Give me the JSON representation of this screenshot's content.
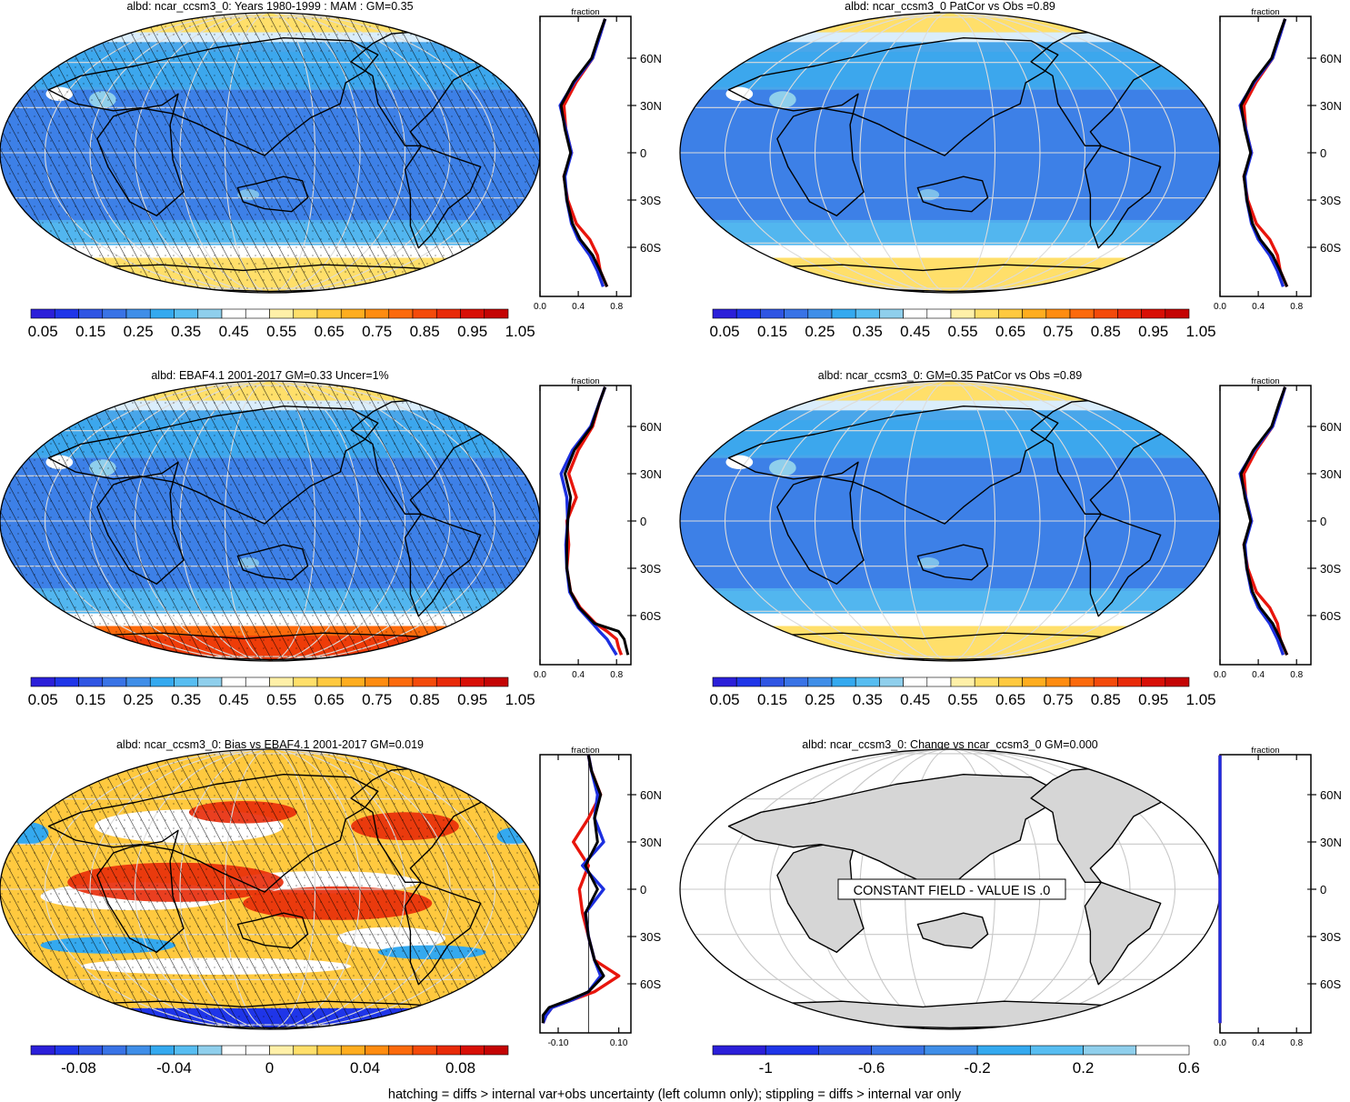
{
  "palettes": {
    "albedo": [
      "#2b1fd9",
      "#1f35e8",
      "#2f55e3",
      "#3973e6",
      "#3f8ee8",
      "#34a9ef",
      "#57bdf1",
      "#8fcfec",
      "#ffffff",
      "#ffffff",
      "#fff0a8",
      "#ffdf6a",
      "#ffc93f",
      "#ffad1f",
      "#ff8c10",
      "#fc6a0c",
      "#f44a0a",
      "#e82a08",
      "#d80f06",
      "#c40404"
    ],
    "bias": [
      "#2b1fd9",
      "#1f35e8",
      "#2f55e3",
      "#3973e6",
      "#3f8ee8",
      "#34a9ef",
      "#57bdf1",
      "#8fcfec",
      "#ffffff",
      "#ffffff",
      "#fff0a8",
      "#ffdf6a",
      "#ffc93f",
      "#ffad1f",
      "#ff8c10",
      "#fc6a0c",
      "#f44a0a",
      "#e82a08",
      "#d80f06",
      "#c40404"
    ],
    "change": [
      "#2b1fd9",
      "#1f35e8",
      "#2f55e3",
      "#3973e6",
      "#3f8ee8",
      "#34a9ef",
      "#57bdf1",
      "#8fcfec",
      "#ffffff"
    ]
  },
  "colors": {
    "line_red": "#e8150c",
    "line_blue": "#1c2fe0",
    "line_black": "#000000",
    "land_grey": "#d6d6d6",
    "ocean_blue": "#49a6ea"
  },
  "panels": [
    {
      "id": "p1",
      "title": "albd: ncar_ccsm3_0: Years 1980-1999 : MAM : GM=0.35",
      "fill": "albedo",
      "hatching": true,
      "colorbar_labels": [
        "0.05",
        "0.15",
        "0.25",
        "0.35",
        "0.45",
        "0.55",
        "0.65",
        "0.75",
        "0.85",
        "0.95",
        "1.05"
      ],
      "profile": {
        "axis_title": "fraction",
        "x_ticks": [
          "0.0",
          "0.4",
          "0.8"
        ],
        "y_ticks": [
          "60N",
          "30N",
          "0",
          "30S",
          "60S"
        ],
        "xlim": [
          0,
          0.95
        ]
      }
    },
    {
      "id": "p2",
      "title": "albd: ncar_ccsm3_0 PatCor vs Obs =0.89",
      "fill": "albedo",
      "hatching": false,
      "colorbar_labels": [
        "0.05",
        "0.15",
        "0.25",
        "0.35",
        "0.45",
        "0.55",
        "0.65",
        "0.75",
        "0.85",
        "0.95",
        "1.05"
      ],
      "profile": {
        "axis_title": "fraction",
        "x_ticks": [
          "0.0",
          "0.4",
          "0.8"
        ],
        "y_ticks": [
          "60N",
          "30N",
          "0",
          "30S",
          "60S"
        ],
        "xlim": [
          0,
          0.95
        ]
      }
    },
    {
      "id": "p3",
      "title": "albd: EBAF4.1 2001-2017 GM=0.33 Uncer=1%",
      "fill": "albedo",
      "hatching": true,
      "colorbar_labels": [
        "0.05",
        "0.15",
        "0.25",
        "0.35",
        "0.45",
        "0.55",
        "0.65",
        "0.75",
        "0.85",
        "0.95",
        "1.05"
      ],
      "profile": {
        "axis_title": "fraction",
        "x_ticks": [
          "0.0",
          "0.4",
          "0.8"
        ],
        "y_ticks": [
          "60N",
          "30N",
          "0",
          "30S",
          "60S"
        ],
        "xlim": [
          0,
          0.95
        ]
      }
    },
    {
      "id": "p4",
      "title": "albd: ncar_ccsm3_0: GM=0.35 PatCor vs Obs =0.89",
      "fill": "albedo",
      "hatching": false,
      "colorbar_labels": [
        "0.05",
        "0.15",
        "0.25",
        "0.35",
        "0.45",
        "0.55",
        "0.65",
        "0.75",
        "0.85",
        "0.95",
        "1.05"
      ],
      "profile": {
        "axis_title": "fraction",
        "x_ticks": [
          "0.0",
          "0.4",
          "0.8"
        ],
        "y_ticks": [
          "60N",
          "30N",
          "0",
          "30S",
          "60S"
        ],
        "xlim": [
          0,
          0.95
        ]
      }
    },
    {
      "id": "p5",
      "title": "albd: ncar_ccsm3_0: Bias vs EBAF4.1 2001-2017 GM=0.019",
      "fill": "bias",
      "hatching": true,
      "colorbar_labels": [
        "-0.08",
        "-0.04",
        "0",
        "0.04",
        "0.08"
      ],
      "profile": {
        "axis_title": "fraction",
        "x_ticks": [
          "-0.10",
          "0.10"
        ],
        "y_ticks": [
          "60N",
          "30N",
          "0",
          "30S",
          "60S"
        ],
        "xlim": [
          -0.16,
          0.14
        ]
      }
    },
    {
      "id": "p6",
      "title": "albd: ncar_ccsm3_0: Change vs ncar_ccsm3_0 GM=0.000",
      "fill": "constant",
      "hatching": false,
      "constant_label": "CONSTANT FIELD - VALUE IS .0",
      "colorbar_labels": [
        "-1",
        "-0.6",
        "-0.2",
        "0.2",
        "0.6"
      ],
      "profile": {
        "axis_title": "fraction",
        "x_ticks": [
          "0.0",
          "0.4",
          "0.8"
        ],
        "y_ticks": [
          "60N",
          "30N",
          "0",
          "30S",
          "60S"
        ],
        "xlim": [
          0,
          0.95
        ]
      }
    }
  ],
  "chart_data": [
    {
      "type": "line",
      "panel": "p1",
      "y_name": "latitude",
      "lat": [
        85,
        75,
        60,
        45,
        30,
        15,
        0,
        -15,
        -30,
        -45,
        -55,
        -65,
        -75,
        -85
      ],
      "series": [
        {
          "values": [
            0.68,
            0.63,
            0.55,
            0.38,
            0.25,
            0.27,
            0.33,
            0.25,
            0.29,
            0.38,
            0.52,
            0.6,
            0.63,
            0.7
          ]
        },
        {
          "values": [
            0.68,
            0.63,
            0.55,
            0.36,
            0.21,
            0.27,
            0.33,
            0.26,
            0.28,
            0.33,
            0.4,
            0.52,
            0.6,
            0.66
          ]
        },
        {
          "values": [
            0.68,
            0.62,
            0.54,
            0.35,
            0.22,
            0.26,
            0.32,
            0.25,
            0.28,
            0.34,
            0.42,
            0.55,
            0.63,
            0.7
          ]
        }
      ]
    },
    {
      "type": "line",
      "panel": "p2",
      "y_name": "latitude",
      "lat": [
        85,
        75,
        60,
        45,
        30,
        15,
        0,
        -15,
        -30,
        -45,
        -55,
        -65,
        -75,
        -85
      ],
      "series": [
        {
          "values": [
            0.68,
            0.63,
            0.55,
            0.38,
            0.25,
            0.27,
            0.33,
            0.25,
            0.29,
            0.38,
            0.52,
            0.6,
            0.63,
            0.7
          ]
        },
        {
          "values": [
            0.68,
            0.63,
            0.55,
            0.36,
            0.21,
            0.27,
            0.33,
            0.26,
            0.28,
            0.33,
            0.4,
            0.52,
            0.6,
            0.66
          ]
        },
        {
          "values": [
            0.68,
            0.62,
            0.54,
            0.35,
            0.22,
            0.26,
            0.32,
            0.25,
            0.28,
            0.34,
            0.42,
            0.55,
            0.63,
            0.7
          ]
        }
      ]
    },
    {
      "type": "line",
      "panel": "p3",
      "y_name": "latitude",
      "lat": [
        85,
        75,
        60,
        45,
        30,
        15,
        0,
        -15,
        -30,
        -45,
        -55,
        -65,
        -70,
        -75,
        -80,
        -85
      ],
      "series": [
        {
          "values": [
            0.68,
            0.62,
            0.55,
            0.4,
            0.3,
            0.38,
            0.28,
            0.3,
            0.28,
            0.32,
            0.42,
            0.58,
            0.7,
            0.8,
            0.82,
            0.85
          ]
        },
        {
          "values": [
            0.68,
            0.62,
            0.53,
            0.34,
            0.22,
            0.28,
            0.29,
            0.27,
            0.28,
            0.31,
            0.4,
            0.55,
            0.62,
            0.7,
            0.75,
            0.8
          ]
        },
        {
          "values": [
            0.68,
            0.62,
            0.54,
            0.36,
            0.26,
            0.32,
            0.29,
            0.28,
            0.28,
            0.32,
            0.41,
            0.57,
            0.82,
            0.88,
            0.9,
            0.92
          ]
        }
      ]
    },
    {
      "type": "line",
      "panel": "p4",
      "y_name": "latitude",
      "lat": [
        85,
        75,
        60,
        45,
        30,
        15,
        0,
        -15,
        -30,
        -45,
        -55,
        -65,
        -75,
        -85
      ],
      "series": [
        {
          "values": [
            0.68,
            0.63,
            0.55,
            0.38,
            0.25,
            0.27,
            0.33,
            0.25,
            0.29,
            0.38,
            0.52,
            0.6,
            0.63,
            0.7
          ]
        },
        {
          "values": [
            0.68,
            0.63,
            0.55,
            0.36,
            0.21,
            0.27,
            0.33,
            0.26,
            0.28,
            0.33,
            0.4,
            0.52,
            0.6,
            0.66
          ]
        },
        {
          "values": [
            0.68,
            0.62,
            0.54,
            0.35,
            0.22,
            0.26,
            0.32,
            0.25,
            0.28,
            0.34,
            0.42,
            0.55,
            0.63,
            0.7
          ]
        }
      ]
    },
    {
      "type": "line",
      "panel": "p5",
      "y_name": "latitude",
      "lat": [
        85,
        75,
        60,
        45,
        30,
        15,
        0,
        -15,
        -30,
        -45,
        -55,
        -65,
        -70,
        -75,
        -80,
        -85
      ],
      "series": [
        {
          "values": [
            0.0,
            0.01,
            0.04,
            0.0,
            -0.05,
            0.0,
            -0.03,
            -0.02,
            0.0,
            0.02,
            0.1,
            0.02,
            -0.05,
            -0.12,
            -0.14,
            -0.15
          ]
        },
        {
          "values": [
            0.0,
            0.01,
            0.03,
            0.02,
            0.05,
            -0.02,
            0.05,
            -0.01,
            0.0,
            0.02,
            0.04,
            0.0,
            -0.05,
            -0.12,
            -0.14,
            -0.15
          ]
        },
        {
          "values": [
            0.0,
            0.01,
            0.04,
            0.02,
            0.03,
            -0.01,
            0.03,
            -0.01,
            0.0,
            0.02,
            0.05,
            0.0,
            -0.06,
            -0.13,
            -0.15,
            -0.15
          ]
        }
      ]
    },
    {
      "type": "line",
      "panel": "p6",
      "y_name": "latitude",
      "lat": [
        85,
        -85
      ],
      "series": [
        {
          "values": [
            0.0,
            0.0
          ]
        },
        {
          "values": [
            0.0,
            0.0
          ]
        }
      ]
    }
  ],
  "footer": "hatching = diffs > internal var+obs uncertainty (left column only); stippling = diffs > internal var only"
}
